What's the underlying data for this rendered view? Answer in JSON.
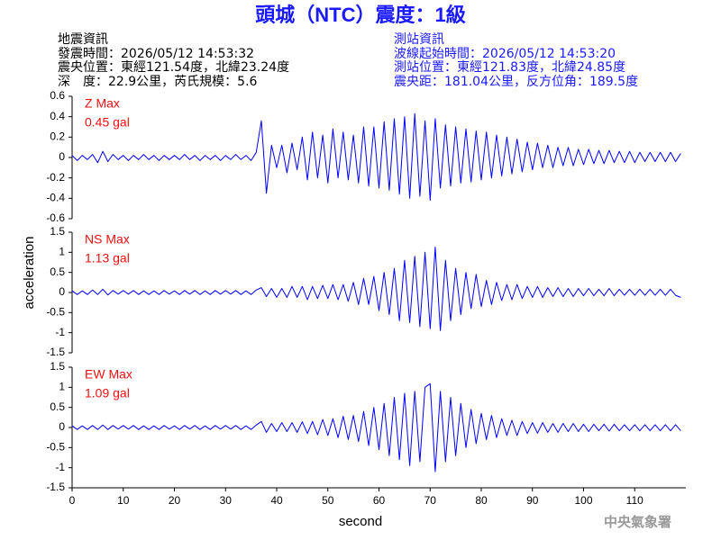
{
  "title": "頭城（NTC）震度：1級",
  "event_info": [
    "地震資訊",
    "發震時間：2026/05/12 14:53:32",
    "震央位置：東經121.54度，北緯23.24度",
    "深　度：22.9公里，芮氏規模：5.6"
  ],
  "station_info": [
    "測站資訊",
    "波線起始時間：2026/05/12 14:53:20",
    "測站位置：東經121.83度，北緯24.85度",
    "震央距：181.04公里，反方位角：189.5度"
  ],
  "y_label": "acceleration",
  "x_label": "second",
  "footer": "中央氣象署",
  "chart_data": [
    {
      "type": "line",
      "annotations": [
        "Z Max",
        "0.45 gal"
      ],
      "color": "#0000ff",
      "annotation_color": "#ee1111",
      "ylim": [
        -0.6,
        0.6
      ],
      "yticks": [
        -0.6,
        -0.4,
        -0.2,
        0,
        0.2,
        0.4,
        0.6
      ],
      "xlim": [
        0,
        120
      ],
      "x": [
        0,
        1,
        2,
        3,
        4,
        5,
        6,
        7,
        8,
        9,
        10,
        11,
        12,
        13,
        14,
        15,
        16,
        17,
        18,
        19,
        20,
        21,
        22,
        23,
        24,
        25,
        26,
        27,
        28,
        29,
        30,
        31,
        32,
        33,
        34,
        35,
        36,
        37,
        38,
        39,
        40,
        41,
        42,
        43,
        44,
        45,
        46,
        47,
        48,
        49,
        50,
        51,
        52,
        53,
        54,
        55,
        56,
        57,
        58,
        59,
        60,
        61,
        62,
        63,
        64,
        65,
        66,
        67,
        68,
        69,
        70,
        71,
        72,
        73,
        74,
        75,
        76,
        77,
        78,
        79,
        80,
        81,
        82,
        83,
        84,
        85,
        86,
        87,
        88,
        89,
        90,
        91,
        92,
        93,
        94,
        95,
        96,
        97,
        98,
        99,
        100,
        101,
        102,
        103,
        104,
        105,
        106,
        107,
        108,
        109,
        110,
        111,
        112,
        113,
        114,
        115,
        116,
        117,
        118,
        119
      ],
      "values": [
        0.02,
        -0.03,
        0.02,
        -0.02,
        0.03,
        -0.05,
        0.06,
        -0.04,
        0.03,
        -0.02,
        0.02,
        -0.03,
        0.02,
        -0.02,
        0.03,
        -0.02,
        0.02,
        -0.03,
        0.02,
        -0.02,
        0.02,
        -0.02,
        0.03,
        -0.02,
        0.02,
        -0.03,
        0.02,
        -0.02,
        0.02,
        -0.03,
        0.02,
        -0.02,
        0.03,
        -0.02,
        0.02,
        -0.03,
        0.05,
        0.36,
        -0.35,
        0.12,
        -0.1,
        0.12,
        -0.15,
        0.14,
        -0.12,
        0.2,
        -0.22,
        0.25,
        -0.2,
        0.22,
        -0.25,
        0.28,
        -0.2,
        0.25,
        -0.22,
        0.22,
        -0.25,
        0.3,
        -0.28,
        0.3,
        -0.3,
        0.35,
        -0.32,
        0.38,
        -0.36,
        0.4,
        -0.4,
        0.43,
        -0.38,
        0.36,
        -0.42,
        0.38,
        -0.3,
        0.32,
        -0.28,
        0.3,
        -0.25,
        0.28,
        -0.24,
        0.26,
        -0.22,
        0.25,
        -0.2,
        0.22,
        -0.18,
        0.2,
        -0.16,
        0.18,
        -0.14,
        0.15,
        -0.12,
        0.14,
        -0.1,
        0.12,
        -0.1,
        0.1,
        -0.08,
        0.1,
        -0.08,
        0.08,
        -0.07,
        0.08,
        -0.06,
        0.07,
        -0.06,
        0.07,
        -0.05,
        0.06,
        -0.05,
        0.06,
        -0.05,
        0.05,
        -0.04,
        0.05,
        -0.04,
        0.05,
        -0.04,
        0.05,
        -0.04,
        0.04
      ]
    },
    {
      "type": "line",
      "annotations": [
        "NS Max",
        "1.13 gal"
      ],
      "color": "#0000ff",
      "annotation_color": "#ee1111",
      "ylim": [
        -1.5,
        1.5
      ],
      "yticks": [
        -1.5,
        -1,
        -0.5,
        0,
        0.5,
        1,
        1.5
      ],
      "xlim": [
        0,
        120
      ],
      "x": [
        0,
        1,
        2,
        3,
        4,
        5,
        6,
        7,
        8,
        9,
        10,
        11,
        12,
        13,
        14,
        15,
        16,
        17,
        18,
        19,
        20,
        21,
        22,
        23,
        24,
        25,
        26,
        27,
        28,
        29,
        30,
        31,
        32,
        33,
        34,
        35,
        36,
        37,
        38,
        39,
        40,
        41,
        42,
        43,
        44,
        45,
        46,
        47,
        48,
        49,
        50,
        51,
        52,
        53,
        54,
        55,
        56,
        57,
        58,
        59,
        60,
        61,
        62,
        63,
        64,
        65,
        66,
        67,
        68,
        69,
        70,
        71,
        72,
        73,
        74,
        75,
        76,
        77,
        78,
        79,
        80,
        81,
        82,
        83,
        84,
        85,
        86,
        87,
        88,
        89,
        90,
        91,
        92,
        93,
        94,
        95,
        96,
        97,
        98,
        99,
        100,
        101,
        102,
        103,
        104,
        105,
        106,
        107,
        108,
        109,
        110,
        111,
        112,
        113,
        114,
        115,
        116,
        117,
        118,
        119
      ],
      "values": [
        0.04,
        -0.05,
        0.04,
        -0.05,
        0.06,
        -0.05,
        0.08,
        -0.06,
        0.05,
        -0.04,
        0.05,
        -0.04,
        0.05,
        -0.05,
        0.04,
        -0.05,
        0.04,
        -0.05,
        0.05,
        -0.04,
        0.04,
        -0.05,
        0.05,
        -0.04,
        0.05,
        -0.05,
        0.04,
        -0.05,
        0.05,
        -0.04,
        0.05,
        -0.04,
        0.05,
        -0.05,
        0.04,
        -0.05,
        0.06,
        0.12,
        -0.1,
        0.1,
        -0.12,
        0.1,
        -0.12,
        0.15,
        -0.12,
        0.15,
        -0.18,
        0.15,
        -0.15,
        0.18,
        -0.15,
        0.2,
        -0.18,
        0.2,
        -0.22,
        0.25,
        -0.3,
        0.35,
        -0.3,
        0.4,
        -0.45,
        0.5,
        -0.55,
        0.6,
        -0.7,
        0.8,
        -0.75,
        0.9,
        -0.85,
        1.0,
        -0.9,
        1.13,
        -0.95,
        0.8,
        -0.7,
        0.6,
        -0.55,
        0.5,
        -0.4,
        0.45,
        -0.35,
        0.3,
        -0.3,
        0.25,
        -0.2,
        0.2,
        -0.18,
        0.2,
        -0.15,
        0.15,
        -0.12,
        0.15,
        -0.12,
        0.12,
        -0.1,
        0.12,
        -0.1,
        0.1,
        -0.1,
        0.1,
        -0.08,
        0.1,
        -0.08,
        0.08,
        -0.08,
        0.1,
        -0.08,
        0.08,
        -0.07,
        0.08,
        -0.07,
        0.08,
        -0.07,
        0.08,
        -0.07,
        0.08,
        -0.07,
        0.08,
        -0.07,
        -0.12
      ]
    },
    {
      "type": "line",
      "annotations": [
        "EW Max",
        "1.09 gal"
      ],
      "color": "#0000ff",
      "annotation_color": "#ee1111",
      "ylim": [
        -1.5,
        1.5
      ],
      "yticks": [
        -1.5,
        -1,
        -0.5,
        0,
        0.5,
        1,
        1.5
      ],
      "xlim": [
        0,
        120
      ],
      "xticks": [
        0,
        10,
        20,
        30,
        40,
        50,
        60,
        70,
        80,
        90,
        100,
        110
      ],
      "x": [
        0,
        1,
        2,
        3,
        4,
        5,
        6,
        7,
        8,
        9,
        10,
        11,
        12,
        13,
        14,
        15,
        16,
        17,
        18,
        19,
        20,
        21,
        22,
        23,
        24,
        25,
        26,
        27,
        28,
        29,
        30,
        31,
        32,
        33,
        34,
        35,
        36,
        37,
        38,
        39,
        40,
        41,
        42,
        43,
        44,
        45,
        46,
        47,
        48,
        49,
        50,
        51,
        52,
        53,
        54,
        55,
        56,
        57,
        58,
        59,
        60,
        61,
        62,
        63,
        64,
        65,
        66,
        67,
        68,
        69,
        70,
        71,
        72,
        73,
        74,
        75,
        76,
        77,
        78,
        79,
        80,
        81,
        82,
        83,
        84,
        85,
        86,
        87,
        88,
        89,
        90,
        91,
        92,
        93,
        94,
        95,
        96,
        97,
        98,
        99,
        100,
        101,
        102,
        103,
        104,
        105,
        106,
        107,
        108,
        109,
        110,
        111,
        112,
        113,
        114,
        115,
        116,
        117,
        118,
        119
      ],
      "values": [
        0.04,
        -0.05,
        0.04,
        -0.05,
        0.05,
        -0.05,
        0.06,
        -0.05,
        0.05,
        -0.04,
        0.05,
        -0.04,
        0.05,
        -0.05,
        0.04,
        -0.05,
        0.04,
        -0.05,
        0.05,
        -0.04,
        0.04,
        -0.05,
        0.05,
        -0.04,
        0.05,
        -0.05,
        0.04,
        -0.05,
        0.05,
        -0.04,
        0.05,
        -0.04,
        0.05,
        -0.05,
        0.04,
        -0.05,
        0.06,
        0.15,
        -0.12,
        0.1,
        -0.1,
        0.12,
        -0.1,
        0.12,
        -0.12,
        0.14,
        -0.15,
        0.15,
        -0.18,
        0.2,
        -0.2,
        0.22,
        -0.25,
        0.28,
        -0.3,
        0.3,
        -0.35,
        0.4,
        -0.45,
        0.5,
        -0.55,
        0.6,
        -0.7,
        0.75,
        -0.8,
        0.85,
        -0.95,
        0.9,
        -0.85,
        1.0,
        1.09,
        -1.1,
        0.9,
        -0.85,
        0.75,
        -0.7,
        0.6,
        -0.5,
        0.45,
        -0.4,
        0.35,
        -0.3,
        0.3,
        -0.25,
        0.22,
        -0.2,
        0.18,
        -0.2,
        0.15,
        -0.15,
        0.12,
        -0.14,
        0.12,
        -0.12,
        0.1,
        -0.12,
        0.1,
        -0.1,
        0.1,
        -0.1,
        0.08,
        -0.1,
        0.08,
        -0.08,
        0.08,
        -0.09,
        0.08,
        -0.08,
        0.07,
        -0.08,
        0.07,
        -0.08,
        0.07,
        -0.08,
        0.07,
        -0.08,
        0.07,
        -0.08,
        0.07,
        -0.08
      ]
    }
  ]
}
